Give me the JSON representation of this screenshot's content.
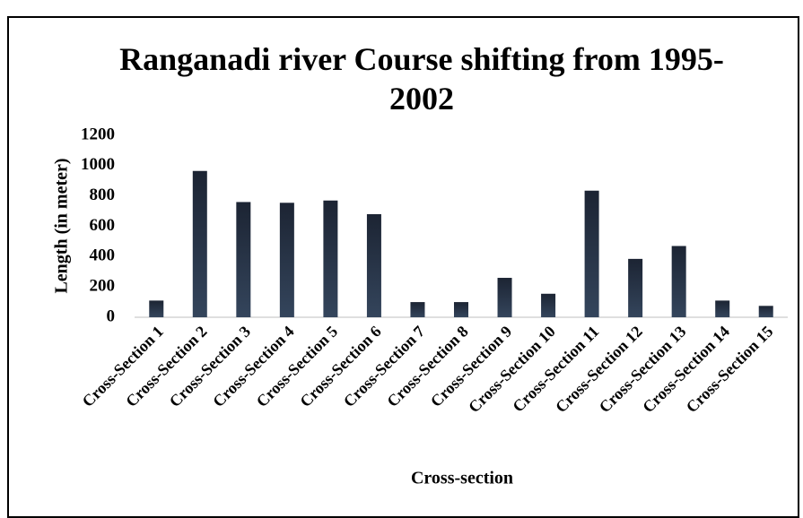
{
  "chart_data": {
    "type": "bar",
    "title": "Ranganadi river Course shifting from 1995-2002",
    "x_label": "Cross-section",
    "y_label": "Length (in meter)",
    "categories": [
      "Cross-Section 1",
      "Cross-Section 2",
      "Cross-Section 3",
      "Cross-Section 4",
      "Cross-Section 5",
      "Cross-Section 6",
      "Cross-Section 7",
      "Cross-Section 8",
      "Cross-Section 9",
      "Cross-Section 10",
      "Cross-Section 11",
      "Cross-Section 12",
      "Cross-Section 13",
      "Cross-Section 14",
      "Cross-Section 15"
    ],
    "values": [
      110,
      965,
      760,
      755,
      770,
      680,
      100,
      100,
      260,
      155,
      835,
      385,
      470,
      110,
      75
    ],
    "color": "#222d3d",
    "ylim": [
      0,
      1200
    ],
    "yticks": [
      0,
      200,
      400,
      600,
      800,
      1000,
      1200
    ],
    "grid": false
  }
}
